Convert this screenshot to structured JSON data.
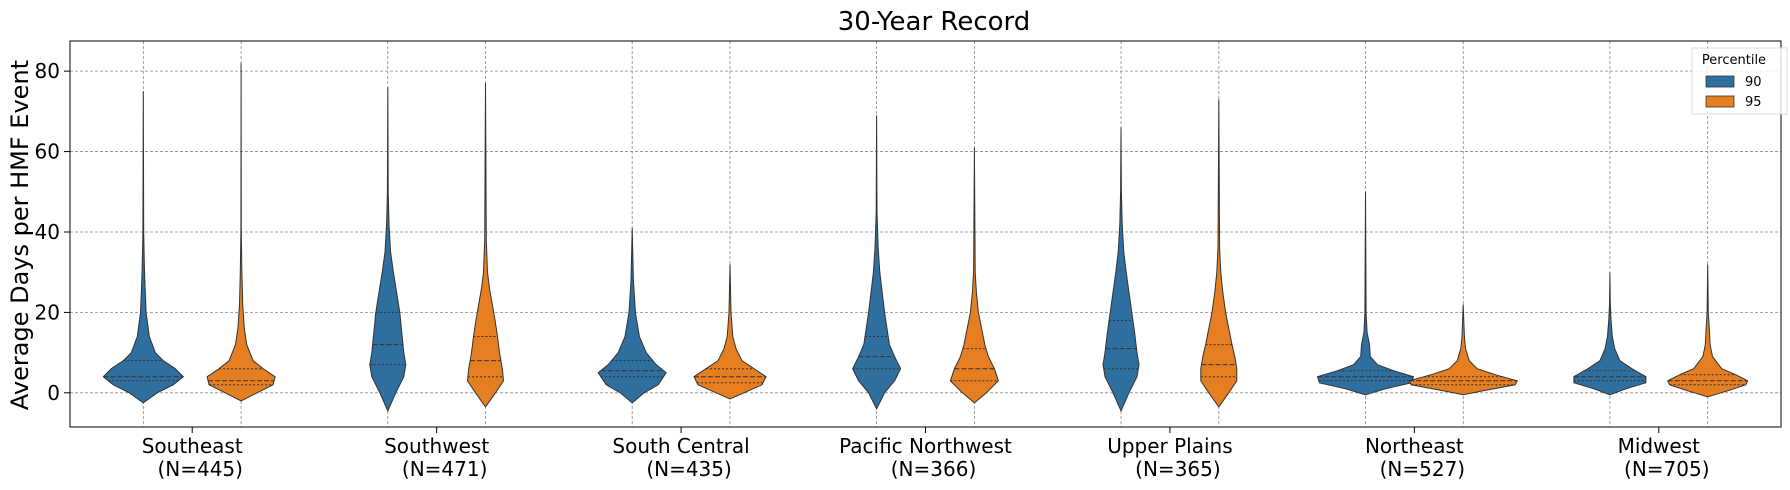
{
  "chart_data": {
    "type": "violin",
    "title": "30-Year Record",
    "xlabel": "",
    "ylabel": "Average Days per HMF Event",
    "ylim": [
      -8.5,
      87.5
    ],
    "yticks": [
      0,
      20,
      40,
      60,
      80
    ],
    "grid": true,
    "legend": {
      "title": "Percentile",
      "placement": "top-right",
      "entries": [
        {
          "label": "90",
          "color": "#2f6f9f"
        },
        {
          "label": "95",
          "color": "#e67e22"
        }
      ]
    },
    "categories": [
      {
        "name": "Southeast",
        "n_label": "(N=445)"
      },
      {
        "name": "Southwest",
        "n_label": "(N=471)"
      },
      {
        "name": "South Central",
        "n_label": "(N=435)"
      },
      {
        "name": "Pacific Northwest",
        "n_label": "(N=366)"
      },
      {
        "name": "Upper Plains",
        "n_label": "(N=365)"
      },
      {
        "name": "Northeast",
        "n_label": "(N=527)"
      },
      {
        "name": "Midwest",
        "n_label": "(N=705)"
      }
    ],
    "series": [
      {
        "name": "90",
        "color": "#2f6f9f",
        "violins": [
          {
            "min": -2.5,
            "max": 75,
            "q1": 3,
            "median": 4,
            "q3": 8,
            "profile": [
              [
                -2.5,
                0
              ],
              [
                0,
                0.35
              ],
              [
                2,
                0.75
              ],
              [
                4,
                1.0
              ],
              [
                6,
                0.8
              ],
              [
                8,
                0.5
              ],
              [
                10,
                0.3
              ],
              [
                14,
                0.15
              ],
              [
                20,
                0.07
              ],
              [
                30,
                0.03
              ],
              [
                40,
                0.01
              ],
              [
                75,
                0
              ]
            ]
          },
          {
            "min": -4.5,
            "max": 76,
            "q1": 7,
            "median": 12,
            "q3": 20,
            "profile": [
              [
                -4.5,
                0
              ],
              [
                0,
                0.2
              ],
              [
                4,
                0.4
              ],
              [
                7,
                0.45
              ],
              [
                10,
                0.4
              ],
              [
                14,
                0.36
              ],
              [
                20,
                0.3
              ],
              [
                25,
                0.22
              ],
              [
                30,
                0.14
              ],
              [
                35,
                0.07
              ],
              [
                42,
                0.03
              ],
              [
                50,
                0.01
              ],
              [
                76,
                0
              ]
            ]
          },
          {
            "min": -2.5,
            "max": 41,
            "q1": 4,
            "median": 5.5,
            "q3": 8,
            "profile": [
              [
                -2.5,
                0
              ],
              [
                0,
                0.3
              ],
              [
                2,
                0.65
              ],
              [
                5,
                0.85
              ],
              [
                7,
                0.6
              ],
              [
                10,
                0.35
              ],
              [
                14,
                0.18
              ],
              [
                20,
                0.08
              ],
              [
                28,
                0.03
              ],
              [
                41,
                0
              ]
            ]
          },
          {
            "min": -4,
            "max": 69,
            "q1": 6,
            "median": 9,
            "q3": 14,
            "profile": [
              [
                -4,
                0
              ],
              [
                0,
                0.2
              ],
              [
                3,
                0.45
              ],
              [
                6,
                0.6
              ],
              [
                9,
                0.45
              ],
              [
                12,
                0.32
              ],
              [
                16,
                0.26
              ],
              [
                20,
                0.2
              ],
              [
                25,
                0.14
              ],
              [
                30,
                0.08
              ],
              [
                36,
                0.04
              ],
              [
                45,
                0.01
              ],
              [
                69,
                0
              ]
            ]
          },
          {
            "min": -4.5,
            "max": 66,
            "q1": 6,
            "median": 11,
            "q3": 18,
            "profile": [
              [
                -4.5,
                0
              ],
              [
                0,
                0.2
              ],
              [
                4,
                0.4
              ],
              [
                7,
                0.45
              ],
              [
                10,
                0.4
              ],
              [
                15,
                0.34
              ],
              [
                20,
                0.27
              ],
              [
                25,
                0.2
              ],
              [
                30,
                0.13
              ],
              [
                35,
                0.07
              ],
              [
                42,
                0.03
              ],
              [
                50,
                0.01
              ],
              [
                66,
                0
              ]
            ]
          },
          {
            "min": -0.5,
            "max": 50,
            "q1": 3,
            "median": 4,
            "q3": 5.5,
            "profile": [
              [
                -0.5,
                0
              ],
              [
                1,
                0.5
              ],
              [
                2.5,
                1.15
              ],
              [
                4,
                1.2
              ],
              [
                5.5,
                0.7
              ],
              [
                7,
                0.3
              ],
              [
                9,
                0.12
              ],
              [
                12,
                0.1
              ],
              [
                15,
                0.04
              ],
              [
                20,
                0.015
              ],
              [
                50,
                0
              ]
            ]
          },
          {
            "min": -0.5,
            "max": 30,
            "q1": 3,
            "median": 4,
            "q3": 5.5,
            "profile": [
              [
                -0.5,
                0
              ],
              [
                1,
                0.4
              ],
              [
                2.5,
                0.9
              ],
              [
                4,
                0.9
              ],
              [
                6,
                0.55
              ],
              [
                8,
                0.25
              ],
              [
                11,
                0.12
              ],
              [
                14,
                0.06
              ],
              [
                18,
                0.03
              ],
              [
                22,
                0.01
              ],
              [
                30,
                0
              ]
            ]
          }
        ]
      },
      {
        "name": "95",
        "color": "#e67e22",
        "violins": [
          {
            "min": -2,
            "max": 82,
            "q1": 2,
            "median": 3,
            "q3": 6,
            "profile": [
              [
                -2,
                0
              ],
              [
                0,
                0.4
              ],
              [
                2,
                0.8
              ],
              [
                4,
                0.85
              ],
              [
                6,
                0.55
              ],
              [
                8,
                0.3
              ],
              [
                12,
                0.14
              ],
              [
                16,
                0.08
              ],
              [
                22,
                0.04
              ],
              [
                30,
                0.02
              ],
              [
                40,
                0.005
              ],
              [
                82,
                0
              ]
            ]
          },
          {
            "min": -3.5,
            "max": 77,
            "q1": 4,
            "median": 8,
            "q3": 14,
            "profile": [
              [
                -3.5,
                0
              ],
              [
                0,
                0.25
              ],
              [
                3,
                0.45
              ],
              [
                6,
                0.42
              ],
              [
                10,
                0.35
              ],
              [
                14,
                0.3
              ],
              [
                18,
                0.24
              ],
              [
                22,
                0.17
              ],
              [
                26,
                0.1
              ],
              [
                30,
                0.05
              ],
              [
                38,
                0.02
              ],
              [
                77,
                0
              ]
            ]
          },
          {
            "min": -1.5,
            "max": 32,
            "q1": 2.5,
            "median": 4,
            "q3": 6,
            "profile": [
              [
                -1.5,
                0
              ],
              [
                0,
                0.35
              ],
              [
                2,
                0.8
              ],
              [
                4,
                0.9
              ],
              [
                6,
                0.6
              ],
              [
                8,
                0.3
              ],
              [
                11,
                0.15
              ],
              [
                14,
                0.07
              ],
              [
                20,
                0.025
              ],
              [
                32,
                0
              ]
            ]
          },
          {
            "min": -2.5,
            "max": 61,
            "q1": 3,
            "median": 6,
            "q3": 11,
            "profile": [
              [
                -2.5,
                0
              ],
              [
                0,
                0.3
              ],
              [
                3,
                0.6
              ],
              [
                6,
                0.5
              ],
              [
                9,
                0.35
              ],
              [
                12,
                0.26
              ],
              [
                16,
                0.18
              ],
              [
                20,
                0.1
              ],
              [
                25,
                0.05
              ],
              [
                30,
                0.02
              ],
              [
                61,
                0
              ]
            ]
          },
          {
            "min": -3.5,
            "max": 73,
            "q1": 4,
            "median": 7,
            "q3": 12,
            "profile": [
              [
                -3.5,
                0
              ],
              [
                0,
                0.25
              ],
              [
                3,
                0.45
              ],
              [
                6,
                0.45
              ],
              [
                9,
                0.4
              ],
              [
                12,
                0.33
              ],
              [
                16,
                0.25
              ],
              [
                20,
                0.17
              ],
              [
                25,
                0.1
              ],
              [
                30,
                0.05
              ],
              [
                36,
                0.02
              ],
              [
                73,
                0
              ]
            ]
          },
          {
            "min": -0.5,
            "max": 22,
            "q1": 2,
            "median": 3,
            "q3": 4,
            "profile": [
              [
                -0.5,
                0
              ],
              [
                0.5,
                0.5
              ],
              [
                2,
                1.3
              ],
              [
                3,
                1.35
              ],
              [
                4.5,
                0.8
              ],
              [
                6,
                0.35
              ],
              [
                8,
                0.15
              ],
              [
                11,
                0.06
              ],
              [
                14,
                0.03
              ],
              [
                22,
                0
              ]
            ]
          },
          {
            "min": -1,
            "max": 32,
            "q1": 2,
            "median": 3,
            "q3": 4.5,
            "profile": [
              [
                -1,
                0
              ],
              [
                0.5,
                0.5
              ],
              [
                2,
                0.95
              ],
              [
                3,
                1.0
              ],
              [
                4.5,
                0.7
              ],
              [
                6,
                0.35
              ],
              [
                9,
                0.12
              ],
              [
                12,
                0.06
              ],
              [
                16,
                0.04
              ],
              [
                20,
                0.015
              ],
              [
                32,
                0
              ]
            ]
          }
        ]
      }
    ]
  }
}
